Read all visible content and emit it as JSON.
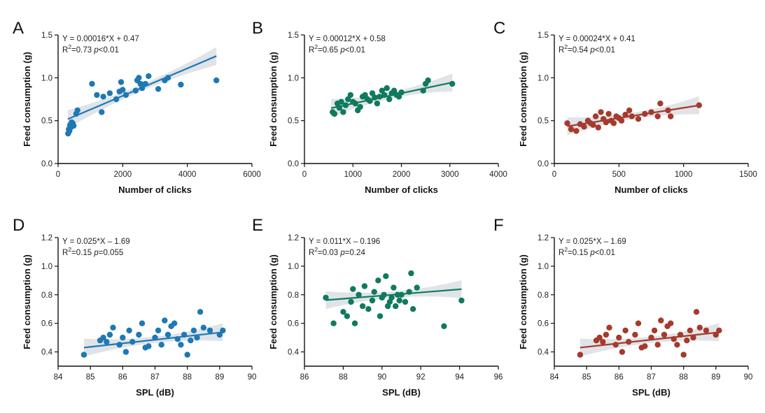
{
  "chart_data": [
    {
      "type": "scatter",
      "panel_label": "A",
      "color": "#1f78b4",
      "band_color": "#d6dbe0",
      "equation": "Y = 0.00016*X + 0.47",
      "stats": "R²=0.73 p<0.01",
      "stats_parts": [
        "R",
        "2",
        "=0.73 ",
        "p",
        "<0.01"
      ],
      "xlabel": "Number of clicks",
      "ylabel": "Feed consumption (g)",
      "xlim": [
        0,
        6000
      ],
      "ylim": [
        0,
        1.5
      ],
      "xticks": [
        0,
        2000,
        4000,
        6000
      ],
      "xtick_labels": [
        "0",
        "2000",
        "4000",
        "6000"
      ],
      "yticks": [
        0,
        0.5,
        1.0,
        1.5
      ],
      "ytick_labels": [
        "0.0",
        "0.5",
        "1.0",
        "1.5"
      ],
      "fit": {
        "slope": 0.00016,
        "intercept": 0.47,
        "x_range": [
          300,
          4900
        ]
      },
      "points": [
        [
          310,
          0.35
        ],
        [
          330,
          0.4
        ],
        [
          350,
          0.38
        ],
        [
          370,
          0.45
        ],
        [
          390,
          0.42
        ],
        [
          420,
          0.48
        ],
        [
          450,
          0.47
        ],
        [
          480,
          0.44
        ],
        [
          560,
          0.58
        ],
        [
          600,
          0.62
        ],
        [
          1050,
          0.93
        ],
        [
          1200,
          0.8
        ],
        [
          1350,
          0.6
        ],
        [
          1400,
          0.78
        ],
        [
          1600,
          0.82
        ],
        [
          1800,
          0.75
        ],
        [
          1900,
          0.84
        ],
        [
          1950,
          0.95
        ],
        [
          2000,
          0.86
        ],
        [
          2100,
          0.8
        ],
        [
          2400,
          0.85
        ],
        [
          2450,
          0.97
        ],
        [
          2500,
          1.0
        ],
        [
          2550,
          0.93
        ],
        [
          2600,
          0.88
        ],
        [
          2700,
          0.93
        ],
        [
          2800,
          1.02
        ],
        [
          3100,
          0.87
        ],
        [
          3300,
          0.97
        ],
        [
          3400,
          1.0
        ],
        [
          3800,
          0.92
        ],
        [
          4900,
          0.97
        ]
      ]
    },
    {
      "type": "scatter",
      "panel_label": "B",
      "color": "#0f7a5e",
      "band_color": "#d6dbe0",
      "equation": "Y = 0.00012*X + 0.58",
      "stats": "R²=0.65 p<0.01",
      "stats_parts": [
        "R",
        "2",
        "=0.65 ",
        "p",
        "<0.01"
      ],
      "xlabel": "Number of clicks",
      "ylabel": "Feed consumption (g)",
      "xlim": [
        0,
        4000
      ],
      "ylim": [
        0,
        1.5
      ],
      "xticks": [
        0,
        1000,
        2000,
        3000,
        4000
      ],
      "xtick_labels": [
        "0",
        "1000",
        "2000",
        "3000",
        "4000"
      ],
      "yticks": [
        0,
        0.5,
        1.0,
        1.5
      ],
      "ytick_labels": [
        "0.0",
        "0.5",
        "1.0",
        "1.5"
      ],
      "fit": {
        "slope": 0.00012,
        "intercept": 0.58,
        "x_range": [
          550,
          3050
        ]
      },
      "points": [
        [
          580,
          0.6
        ],
        [
          620,
          0.58
        ],
        [
          680,
          0.7
        ],
        [
          720,
          0.65
        ],
        [
          760,
          0.72
        ],
        [
          800,
          0.6
        ],
        [
          850,
          0.68
        ],
        [
          900,
          0.75
        ],
        [
          950,
          0.8
        ],
        [
          1000,
          0.72
        ],
        [
          1050,
          0.7
        ],
        [
          1100,
          0.62
        ],
        [
          1150,
          0.66
        ],
        [
          1200,
          0.78
        ],
        [
          1250,
          0.8
        ],
        [
          1300,
          0.75
        ],
        [
          1350,
          0.73
        ],
        [
          1400,
          0.82
        ],
        [
          1450,
          0.77
        ],
        [
          1500,
          0.7
        ],
        [
          1550,
          0.78
        ],
        [
          1600,
          0.85
        ],
        [
          1650,
          0.8
        ],
        [
          1700,
          0.88
        ],
        [
          1750,
          0.75
        ],
        [
          1800,
          0.82
        ],
        [
          1850,
          0.85
        ],
        [
          1900,
          0.8
        ],
        [
          1950,
          0.78
        ],
        [
          2000,
          0.83
        ],
        [
          2450,
          0.85
        ],
        [
          2500,
          0.93
        ],
        [
          2550,
          0.97
        ],
        [
          3050,
          0.93
        ]
      ]
    },
    {
      "type": "scatter",
      "panel_label": "C",
      "color": "#a63a2c",
      "band_color": "#d6dbe0",
      "equation": "Y = 0.00024*X + 0.41",
      "stats": "R²=0.54 p<0.01",
      "stats_parts": [
        "R",
        "2",
        "=0.54 ",
        "p",
        "<0.01"
      ],
      "xlabel": "Number of clicks",
      "ylabel": "Feed consumption (g)",
      "xlim": [
        0,
        1500
      ],
      "ylim": [
        0,
        1.5
      ],
      "xticks": [
        0,
        500,
        1000,
        1500
      ],
      "xtick_labels": [
        "0",
        "500",
        "1000",
        "1500"
      ],
      "yticks": [
        0,
        0.5,
        1.0,
        1.5
      ],
      "ytick_labels": [
        "0.0",
        "0.5",
        "1.0",
        "1.5"
      ],
      "fit": {
        "slope": 0.00024,
        "intercept": 0.41,
        "x_range": [
          100,
          1120
        ]
      },
      "points": [
        [
          100,
          0.47
        ],
        [
          130,
          0.4
        ],
        [
          170,
          0.38
        ],
        [
          200,
          0.46
        ],
        [
          230,
          0.43
        ],
        [
          260,
          0.5
        ],
        [
          280,
          0.47
        ],
        [
          300,
          0.45
        ],
        [
          320,
          0.55
        ],
        [
          340,
          0.42
        ],
        [
          360,
          0.6
        ],
        [
          380,
          0.52
        ],
        [
          400,
          0.48
        ],
        [
          420,
          0.58
        ],
        [
          440,
          0.5
        ],
        [
          460,
          0.47
        ],
        [
          480,
          0.55
        ],
        [
          500,
          0.53
        ],
        [
          520,
          0.5
        ],
        [
          550,
          0.57
        ],
        [
          580,
          0.62
        ],
        [
          600,
          0.55
        ],
        [
          650,
          0.52
        ],
        [
          700,
          0.58
        ],
        [
          750,
          0.6
        ],
        [
          800,
          0.55
        ],
        [
          820,
          0.7
        ],
        [
          880,
          0.62
        ],
        [
          900,
          0.55
        ],
        [
          1120,
          0.68
        ]
      ]
    },
    {
      "type": "scatter",
      "panel_label": "D",
      "color": "#1f78b4",
      "band_color": "#d6dbe0",
      "equation": "Y = 0.025*X – 1.69",
      "stats": "R²=0.15 p=0.055",
      "stats_parts": [
        "R",
        "2",
        "=0.15 ",
        "p",
        "=0.055"
      ],
      "xlabel": "SPL (dB)",
      "ylabel": "Feed consumption (g)",
      "xlim": [
        84,
        90
      ],
      "ylim": [
        0.3,
        1.2
      ],
      "xticks": [
        84,
        85,
        86,
        87,
        88,
        89,
        90
      ],
      "xtick_labels": [
        "84",
        "85",
        "86",
        "87",
        "88",
        "89",
        "90"
      ],
      "yticks": [
        0.4,
        0.6,
        0.8,
        1.0,
        1.2
      ],
      "ytick_labels": [
        "0.4",
        "0.6",
        "0.8",
        "1.0",
        "1.2"
      ],
      "fit": {
        "slope": 0.025,
        "intercept": -1.69,
        "x_range": [
          84.8,
          89.1
        ]
      },
      "points": [
        [
          84.8,
          0.38
        ],
        [
          85.3,
          0.48
        ],
        [
          85.4,
          0.5
        ],
        [
          85.5,
          0.47
        ],
        [
          85.6,
          0.52
        ],
        [
          85.7,
          0.57
        ],
        [
          85.9,
          0.45
        ],
        [
          86.0,
          0.5
        ],
        [
          86.1,
          0.4
        ],
        [
          86.2,
          0.55
        ],
        [
          86.3,
          0.47
        ],
        [
          86.5,
          0.52
        ],
        [
          86.6,
          0.6
        ],
        [
          86.7,
          0.43
        ],
        [
          86.8,
          0.44
        ],
        [
          87.0,
          0.5
        ],
        [
          87.1,
          0.55
        ],
        [
          87.2,
          0.45
        ],
        [
          87.3,
          0.62
        ],
        [
          87.4,
          0.52
        ],
        [
          87.5,
          0.58
        ],
        [
          87.6,
          0.6
        ],
        [
          87.7,
          0.49
        ],
        [
          87.8,
          0.45
        ],
        [
          87.9,
          0.52
        ],
        [
          88.0,
          0.38
        ],
        [
          88.1,
          0.48
        ],
        [
          88.2,
          0.55
        ],
        [
          88.3,
          0.5
        ],
        [
          88.4,
          0.68
        ],
        [
          88.5,
          0.57
        ],
        [
          88.7,
          0.55
        ],
        [
          89.0,
          0.52
        ],
        [
          89.1,
          0.55
        ]
      ]
    },
    {
      "type": "scatter",
      "panel_label": "E",
      "color": "#0f7a5e",
      "band_color": "#d6dbe0",
      "equation": "Y = 0.011*X – 0.196",
      "stats": "R²=0.03 p=0.24",
      "stats_parts": [
        "R",
        "2",
        "=0.03 ",
        "p",
        "=0.24"
      ],
      "xlabel": "SPL (dB)",
      "ylabel": "Feed consumption (g)",
      "xlim": [
        86,
        96
      ],
      "ylim": [
        0.3,
        1.2
      ],
      "xticks": [
        86,
        88,
        90,
        92,
        94,
        96
      ],
      "xtick_labels": [
        "86",
        "88",
        "90",
        "92",
        "94",
        "96"
      ],
      "yticks": [
        0.4,
        0.6,
        0.8,
        1.0,
        1.2
      ],
      "ytick_labels": [
        "0.4",
        "0.6",
        "0.8",
        "1.0",
        "1.2"
      ],
      "fit": {
        "slope": 0.011,
        "intercept": -0.196,
        "x_range": [
          87.1,
          94.1
        ]
      },
      "points": [
        [
          87.1,
          0.78
        ],
        [
          87.5,
          0.6
        ],
        [
          88.0,
          0.68
        ],
        [
          88.2,
          0.65
        ],
        [
          88.4,
          0.75
        ],
        [
          88.5,
          0.84
        ],
        [
          88.6,
          0.6
        ],
        [
          88.8,
          0.8
        ],
        [
          89.0,
          0.72
        ],
        [
          89.1,
          0.86
        ],
        [
          89.3,
          0.7
        ],
        [
          89.5,
          0.76
        ],
        [
          89.6,
          0.82
        ],
        [
          89.8,
          0.9
        ],
        [
          89.9,
          0.65
        ],
        [
          90.0,
          0.78
        ],
        [
          90.1,
          0.8
        ],
        [
          90.2,
          0.93
        ],
        [
          90.3,
          0.72
        ],
        [
          90.4,
          0.75
        ],
        [
          90.5,
          0.78
        ],
        [
          90.6,
          0.85
        ],
        [
          90.7,
          0.72
        ],
        [
          90.8,
          0.8
        ],
        [
          90.9,
          0.76
        ],
        [
          91.0,
          0.8
        ],
        [
          91.2,
          0.75
        ],
        [
          91.4,
          0.82
        ],
        [
          91.5,
          0.95
        ],
        [
          91.6,
          0.7
        ],
        [
          91.8,
          0.85
        ],
        [
          93.2,
          0.58
        ],
        [
          94.1,
          0.76
        ]
      ]
    },
    {
      "type": "scatter",
      "panel_label": "F",
      "color": "#a63a2c",
      "band_color": "#d6dbe0",
      "equation": "Y = 0.025*X – 1.69",
      "stats": "R²=0.15 p<0.01",
      "stats_parts": [
        "R",
        "2",
        "=0.15 ",
        "p",
        "<0.01"
      ],
      "xlabel": "SPL (dB)",
      "ylabel": "Feed consumption (g)",
      "xlim": [
        84,
        90
      ],
      "ylim": [
        0.3,
        1.2
      ],
      "xticks": [
        84,
        85,
        86,
        87,
        88,
        89,
        90
      ],
      "xtick_labels": [
        "84",
        "85",
        "86",
        "87",
        "88",
        "89",
        "90"
      ],
      "yticks": [
        0.4,
        0.6,
        0.8,
        1.0,
        1.2
      ],
      "ytick_labels": [
        "0.4",
        "0.6",
        "0.8",
        "1.0",
        "1.2"
      ],
      "fit": {
        "slope": 0.025,
        "intercept": -1.69,
        "x_range": [
          84.8,
          89.1
        ]
      },
      "points": [
        [
          84.8,
          0.38
        ],
        [
          85.3,
          0.48
        ],
        [
          85.4,
          0.5
        ],
        [
          85.5,
          0.47
        ],
        [
          85.6,
          0.52
        ],
        [
          85.7,
          0.57
        ],
        [
          85.9,
          0.45
        ],
        [
          86.0,
          0.5
        ],
        [
          86.1,
          0.4
        ],
        [
          86.2,
          0.55
        ],
        [
          86.3,
          0.47
        ],
        [
          86.5,
          0.52
        ],
        [
          86.6,
          0.6
        ],
        [
          86.7,
          0.43
        ],
        [
          86.8,
          0.44
        ],
        [
          87.0,
          0.5
        ],
        [
          87.1,
          0.55
        ],
        [
          87.2,
          0.45
        ],
        [
          87.3,
          0.62
        ],
        [
          87.4,
          0.52
        ],
        [
          87.5,
          0.58
        ],
        [
          87.6,
          0.6
        ],
        [
          87.7,
          0.49
        ],
        [
          87.8,
          0.45
        ],
        [
          87.9,
          0.52
        ],
        [
          88.0,
          0.38
        ],
        [
          88.1,
          0.48
        ],
        [
          88.2,
          0.55
        ],
        [
          88.3,
          0.5
        ],
        [
          88.4,
          0.68
        ],
        [
          88.5,
          0.57
        ],
        [
          88.7,
          0.55
        ],
        [
          89.0,
          0.52
        ],
        [
          89.1,
          0.55
        ]
      ]
    }
  ]
}
